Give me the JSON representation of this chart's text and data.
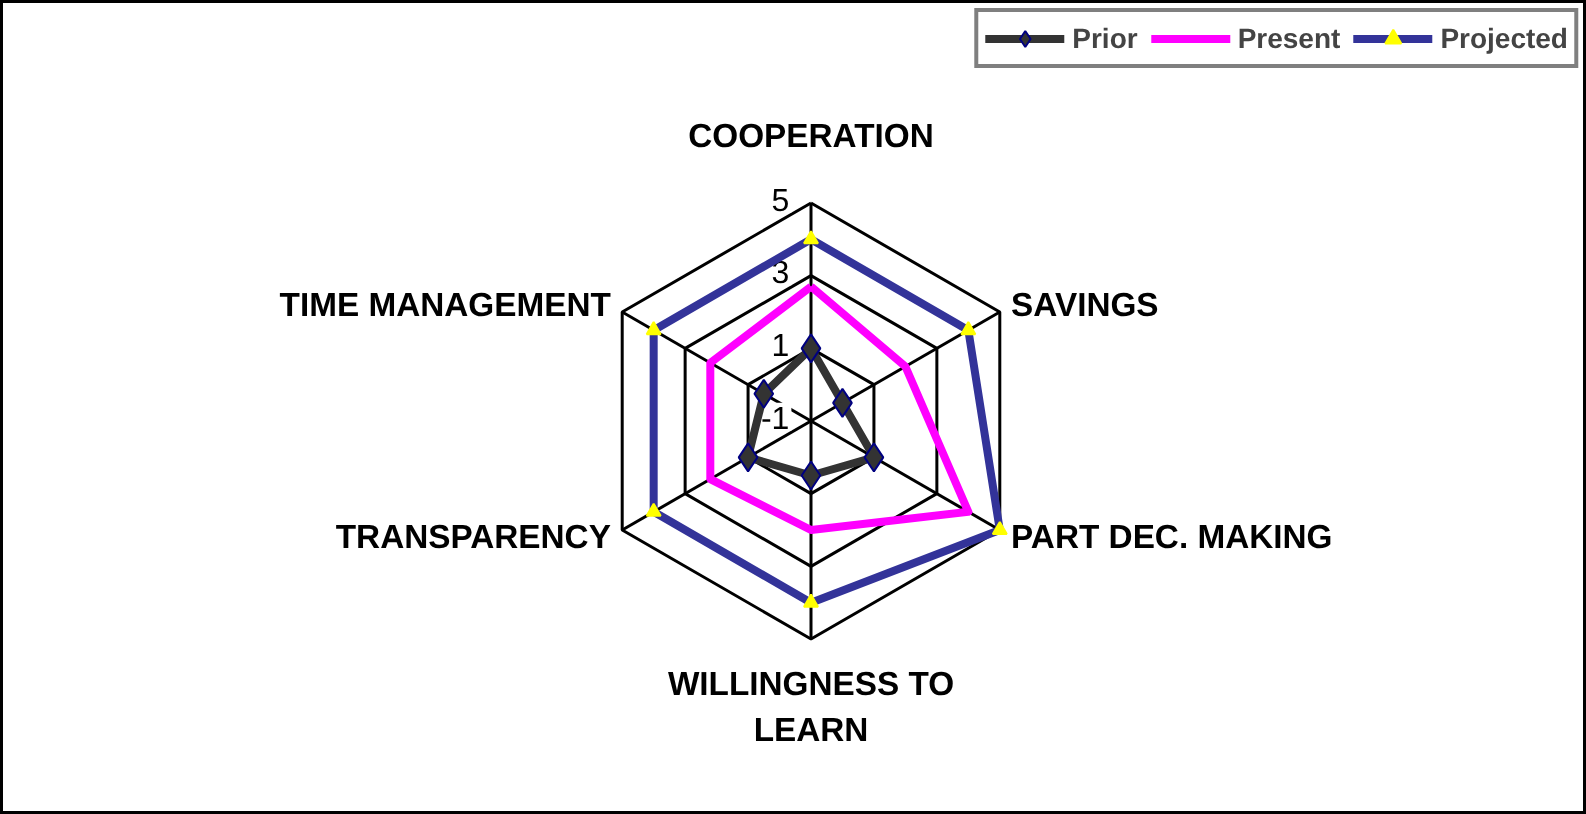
{
  "chart_data": {
    "type": "radar",
    "categories": [
      "COOPERATION",
      "SAVINGS",
      "PART DEC. MAKING",
      "WILLINGNESS TO LEARN",
      "TRANSPARENCY",
      "TIME MANAGEMENT"
    ],
    "ylim": [
      -1,
      5
    ],
    "yticks": [
      -1,
      1,
      3,
      5
    ],
    "grid": true,
    "legend": "top right",
    "series": [
      {
        "name": "Prior",
        "color": "#333333",
        "marker": "diamond",
        "values": [
          1,
          0,
          1,
          0.5,
          1,
          0.5
        ]
      },
      {
        "name": "Present",
        "color": "#ff00ff",
        "marker": "none",
        "values": [
          2.7,
          2,
          4,
          2,
          2.2,
          2.2
        ]
      },
      {
        "name": "Projected",
        "color": "#333399",
        "marker": "triangle",
        "values": [
          4,
          4,
          5,
          4,
          4,
          4
        ]
      }
    ]
  }
}
